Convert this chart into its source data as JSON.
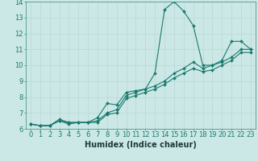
{
  "xlabel": "Humidex (Indice chaleur)",
  "x": [
    0,
    1,
    2,
    3,
    4,
    5,
    6,
    7,
    8,
    9,
    10,
    11,
    12,
    13,
    14,
    15,
    16,
    17,
    18,
    19,
    20,
    21,
    22,
    23
  ],
  "line1": [
    6.3,
    6.2,
    6.2,
    6.6,
    6.4,
    6.4,
    6.4,
    6.7,
    7.6,
    7.5,
    8.3,
    8.4,
    8.5,
    9.5,
    13.5,
    14.0,
    13.4,
    12.5,
    10.0,
    10.0,
    10.3,
    11.5,
    11.5,
    11.0
  ],
  "line2": [
    6.3,
    6.2,
    6.2,
    6.5,
    6.4,
    6.4,
    6.4,
    6.5,
    7.0,
    7.2,
    8.1,
    8.3,
    8.5,
    8.7,
    9.0,
    9.5,
    9.8,
    10.2,
    9.8,
    10.0,
    10.2,
    10.5,
    11.0,
    11.0
  ],
  "line3": [
    6.3,
    6.2,
    6.2,
    6.5,
    6.3,
    6.4,
    6.4,
    6.4,
    6.9,
    7.0,
    7.9,
    8.1,
    8.3,
    8.5,
    8.8,
    9.2,
    9.5,
    9.8,
    9.6,
    9.7,
    10.0,
    10.3,
    10.8,
    10.8
  ],
  "line_color": "#1a7a6e",
  "bg_color": "#cce8e6",
  "grid_color": "#b8d8d6",
  "ylim": [
    6,
    14
  ],
  "yticks": [
    6,
    7,
    8,
    9,
    10,
    11,
    12,
    13,
    14
  ],
  "xticks": [
    0,
    1,
    2,
    3,
    4,
    5,
    6,
    7,
    8,
    9,
    10,
    11,
    12,
    13,
    14,
    15,
    16,
    17,
    18,
    19,
    20,
    21,
    22,
    23
  ],
  "xlabel_fontsize": 7,
  "tick_fontsize": 6,
  "marker_size": 2.0,
  "line_width": 0.8
}
